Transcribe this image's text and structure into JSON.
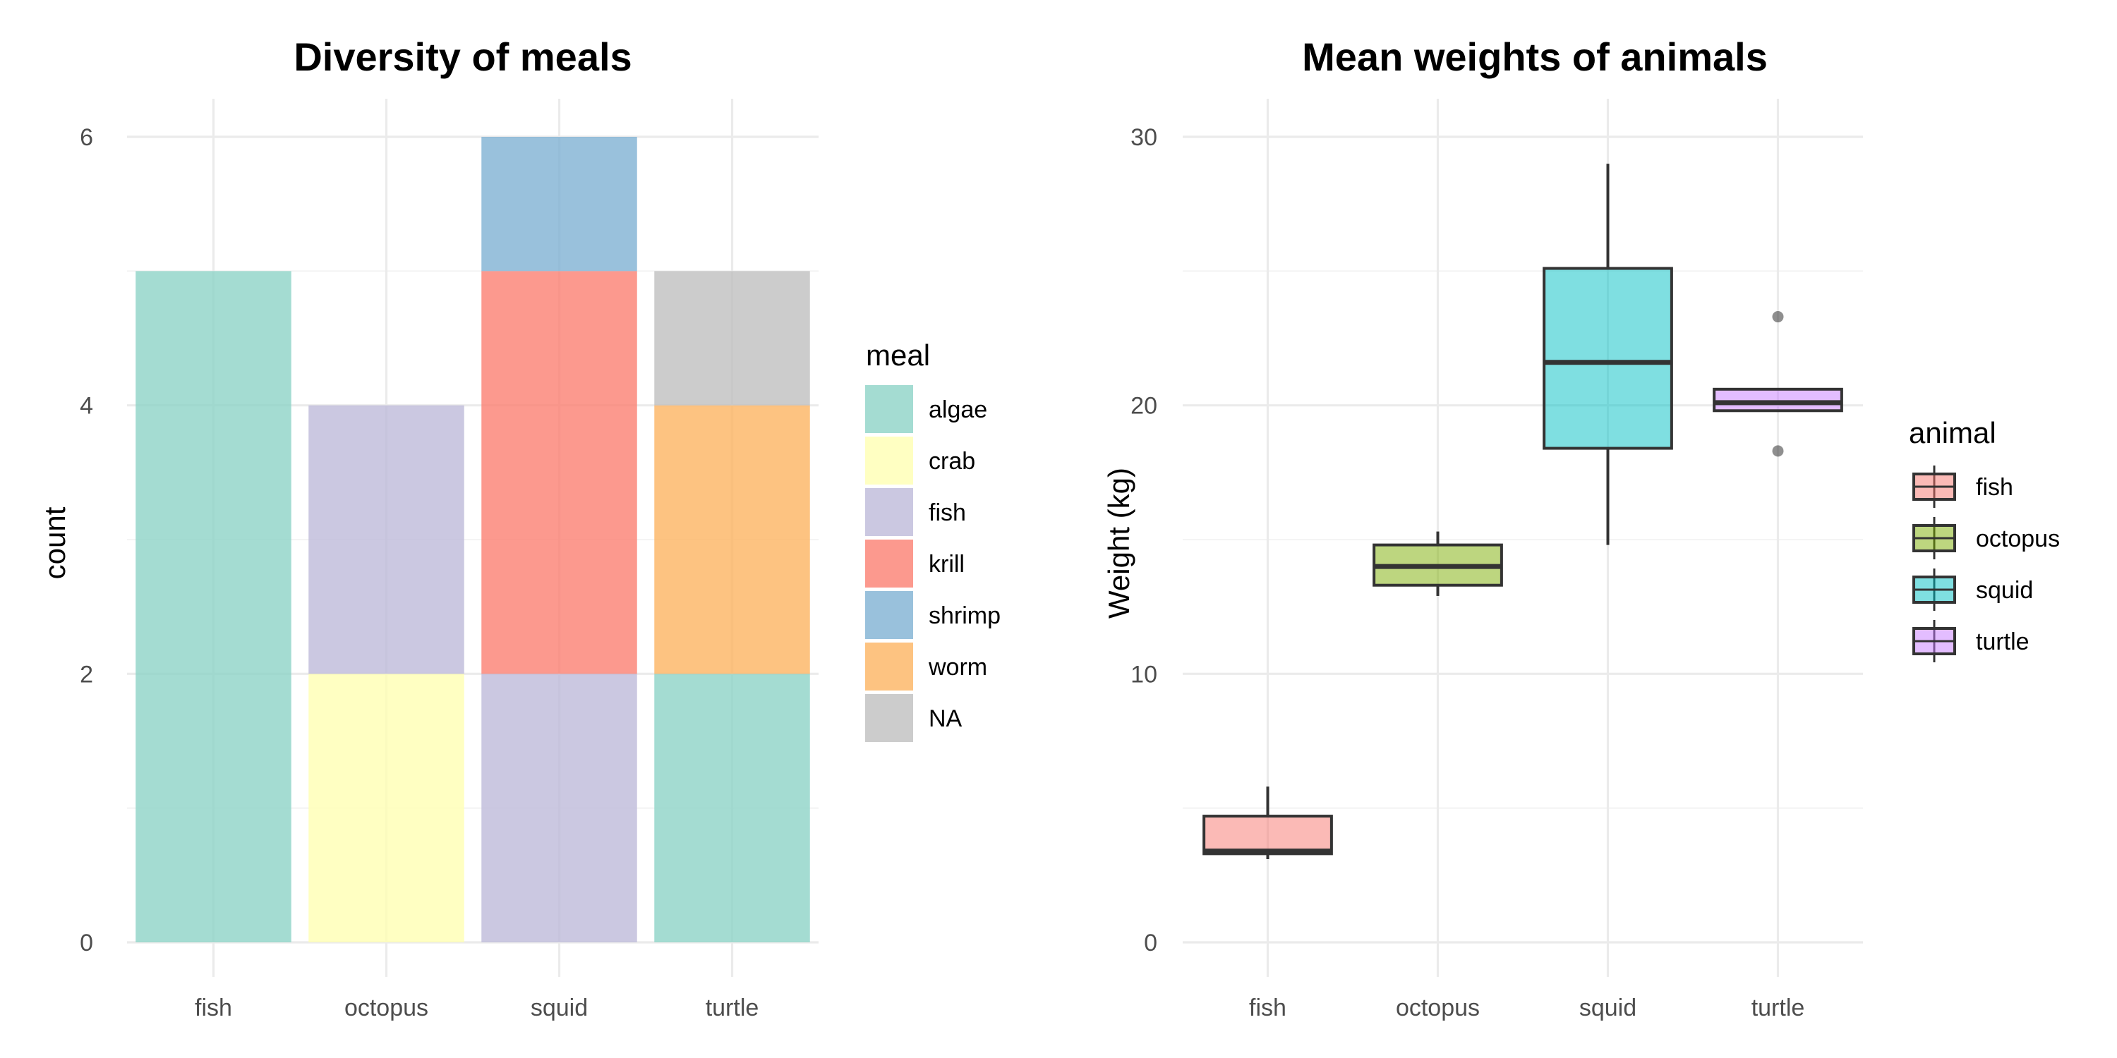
{
  "chart_data": [
    {
      "type": "bar",
      "stacked": true,
      "title": "Diversity of meals",
      "xlabel": "",
      "ylabel": "count",
      "ylim": [
        0,
        6
      ],
      "y_ticks": [
        0,
        2,
        4,
        6
      ],
      "grid": true,
      "categories": [
        "fish",
        "octopus",
        "squid",
        "turtle"
      ],
      "legend": {
        "title": "meal",
        "position": "right"
      },
      "series": [
        {
          "name": "algae",
          "color": "#8dd3c7",
          "values": [
            5,
            0,
            0,
            2
          ]
        },
        {
          "name": "crab",
          "color": "#ffffb3",
          "values": [
            0,
            2,
            0,
            0
          ]
        },
        {
          "name": "fish",
          "color": "#bebada",
          "values": [
            0,
            2,
            2,
            0
          ]
        },
        {
          "name": "krill",
          "color": "#fb8072",
          "values": [
            0,
            0,
            3,
            0
          ]
        },
        {
          "name": "shrimp",
          "color": "#80b1d3",
          "values": [
            0,
            0,
            1,
            0
          ]
        },
        {
          "name": "worm",
          "color": "#fdb462",
          "values": [
            0,
            0,
            0,
            2
          ]
        },
        {
          "name": "NA",
          "color": "#bfbfbf",
          "values": [
            0,
            0,
            0,
            1
          ]
        }
      ]
    },
    {
      "type": "box",
      "title": "Mean weights of animals",
      "xlabel": "",
      "ylabel": "Weight (kg)",
      "ylim": [
        0,
        30
      ],
      "y_ticks": [
        0,
        10,
        20,
        30
      ],
      "grid": true,
      "categories": [
        "fish",
        "octopus",
        "squid",
        "turtle"
      ],
      "legend": {
        "title": "animal",
        "position": "right"
      },
      "boxes": [
        {
          "name": "fish",
          "color": "#f8766d",
          "whisker_low": 3.1,
          "q1": 3.3,
          "median": 3.4,
          "q3": 4.7,
          "whisker_high": 5.8,
          "outliers": []
        },
        {
          "name": "octopus",
          "color": "#7cae00",
          "whisker_low": 12.9,
          "q1": 13.3,
          "median": 14.0,
          "q3": 14.8,
          "whisker_high": 15.3,
          "outliers": []
        },
        {
          "name": "squid",
          "color": "#00bfc4",
          "whisker_low": 14.8,
          "q1": 18.4,
          "median": 21.6,
          "q3": 25.1,
          "whisker_high": 29.0,
          "outliers": []
        },
        {
          "name": "turtle",
          "color": "#c77cff",
          "whisker_low": 19.8,
          "q1": 19.8,
          "median": 20.1,
          "q3": 20.6,
          "whisker_high": 20.6,
          "outliers": [
            23.3,
            18.3
          ]
        }
      ]
    }
  ]
}
